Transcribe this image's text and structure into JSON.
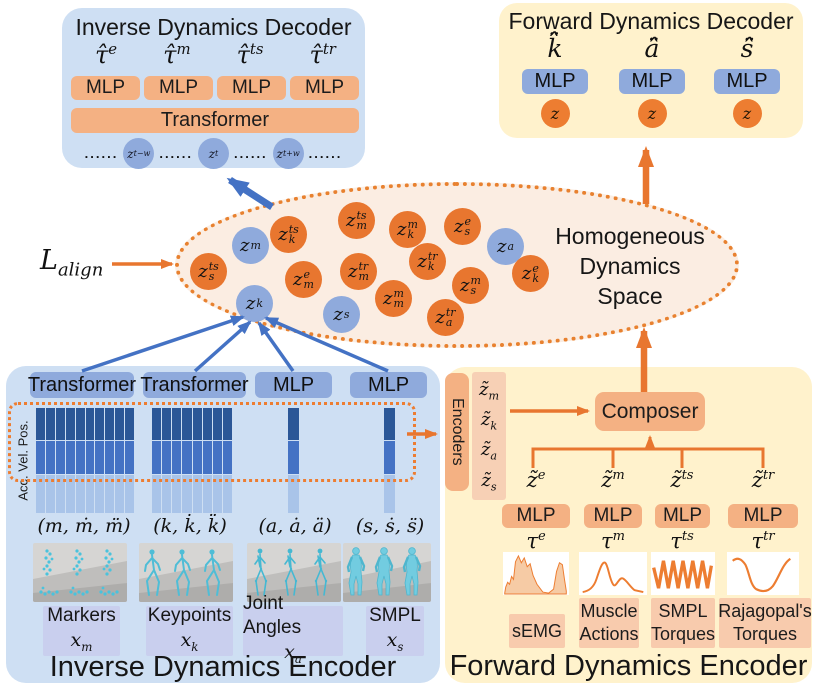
{
  "palette": {
    "panel_blue": "#CEDFF3",
    "panel_yellow": "#FFF2CC",
    "box_orange": "#F4B183",
    "box_blue": "#8FAADC",
    "circle_orange": "#E8762F",
    "circle_blue": "#8FAADC",
    "ellipse_fill": "#FBEDE2",
    "arrow_blue": "#4472C4",
    "arrow_orange": "#E8762F",
    "label_periwinkle": "#C9CFEE",
    "label_peach": "#F8CBAD",
    "matrix_pos_row": "#2B5797",
    "matrix_vel_row": "#4472C4",
    "matrix_acc_row": "#A9C4E9"
  },
  "inverse_decoder": {
    "title": "Inverse Dynamics Decoder",
    "outputs": [
      {
        "base": "τ̂",
        "sup": "e"
      },
      {
        "base": "τ̂",
        "sup": "m"
      },
      {
        "base": "τ̂",
        "sup": "ts"
      },
      {
        "base": "τ̂",
        "sup": "tr"
      }
    ],
    "mlps": [
      "MLP",
      "MLP",
      "MLP",
      "MLP"
    ],
    "transformer": "Transformer",
    "token_dots": "......",
    "tokens": [
      {
        "base": "z",
        "sup": "t−w"
      },
      {
        "base": "z",
        "sup": "t"
      },
      {
        "base": "z",
        "sup": "t+w"
      }
    ]
  },
  "forward_decoder": {
    "title": "Forward Dynamics Decoder",
    "outputs": [
      "k̈̂",
      "ä̂",
      "s̈̂"
    ],
    "mlps": [
      "MLP",
      "MLP",
      "MLP"
    ],
    "latents": [
      "z",
      "z",
      "z"
    ]
  },
  "latent_space": {
    "name_lines": [
      "Homogeneous",
      "Dynamics",
      "Space"
    ],
    "loss": {
      "base": "L",
      "sub": "align"
    },
    "points": [
      {
        "base": "z",
        "sub": "m",
        "sup": "",
        "color": "blue"
      },
      {
        "base": "z",
        "sub": "k",
        "sup": "ts",
        "color": "orange"
      },
      {
        "base": "z",
        "sub": "m",
        "sup": "ts",
        "color": "orange"
      },
      {
        "base": "z",
        "sub": "k",
        "sup": "m",
        "color": "orange"
      },
      {
        "base": "z",
        "sub": "s",
        "sup": "e",
        "color": "orange"
      },
      {
        "base": "z",
        "sub": "a",
        "sup": "",
        "color": "blue"
      },
      {
        "base": "z",
        "sub": "s",
        "sup": "ts",
        "color": "orange"
      },
      {
        "base": "z",
        "sub": "m",
        "sup": "e",
        "color": "orange"
      },
      {
        "base": "z",
        "sub": "m",
        "sup": "tr",
        "color": "orange"
      },
      {
        "base": "z",
        "sub": "k",
        "sup": "tr",
        "color": "orange"
      },
      {
        "base": "z",
        "sub": "s",
        "sup": "m",
        "color": "orange"
      },
      {
        "base": "z",
        "sub": "k",
        "sup": "e",
        "color": "orange"
      },
      {
        "base": "z",
        "sub": "k",
        "sup": "",
        "color": "blue"
      },
      {
        "base": "z",
        "sub": "s",
        "sup": "",
        "color": "blue"
      },
      {
        "base": "z",
        "sub": "m",
        "sup": "m",
        "color": "orange"
      },
      {
        "base": "z",
        "sub": "a",
        "sup": "tr",
        "color": "orange"
      }
    ]
  },
  "inverse_encoder": {
    "title": "Inverse Dynamics Encoder",
    "heads": [
      "Transformer",
      "Transformer",
      "MLP",
      "MLP"
    ],
    "axis_label": "Acc. Vel. Pos.",
    "matrix_groups": [
      {
        "columns": 10
      },
      {
        "columns": 8
      },
      {
        "columns": 1
      },
      {
        "columns": 1
      }
    ],
    "tuples": [
      "(m, ṁ, m̈)",
      "(k, k̇, k̈)",
      "(a, ȧ, ä)",
      "(s, ṡ, s̈)"
    ],
    "modalities": [
      {
        "name": "Markers",
        "sym_base": "x",
        "sym_sub": "m"
      },
      {
        "name": "Keypoints",
        "sym_base": "x",
        "sym_sub": "k"
      },
      {
        "name": "Joint Angles",
        "sym_base": "x",
        "sym_sub": "a"
      },
      {
        "name": "SMPL",
        "sym_base": "x",
        "sym_sub": "s"
      }
    ]
  },
  "forward_encoder": {
    "title": "Forward Dynamics Encoder",
    "encoders_label": "Encoders",
    "latent_stack": [
      {
        "base": "z̃",
        "sub": "m"
      },
      {
        "base": "z̃",
        "sub": "k"
      },
      {
        "base": "z̃",
        "sub": "a"
      },
      {
        "base": "z̃",
        "sub": "s"
      }
    ],
    "composer": "Composer",
    "fused_latents": [
      {
        "base": "z̃",
        "sup": "e"
      },
      {
        "base": "z̃",
        "sup": "m"
      },
      {
        "base": "z̃",
        "sup": "ts"
      },
      {
        "base": "z̃",
        "sup": "tr"
      }
    ],
    "mlps": [
      "MLP",
      "MLP",
      "MLP",
      "MLP"
    ],
    "torques": [
      {
        "base": "τ",
        "sup": "e"
      },
      {
        "base": "τ",
        "sup": "m"
      },
      {
        "base": "τ",
        "sup": "ts"
      },
      {
        "base": "τ",
        "sup": "tr"
      }
    ],
    "modalities": [
      "sEMG",
      "Muscle Actions",
      "SMPL Torques",
      "Rajagopal's Torques"
    ]
  }
}
